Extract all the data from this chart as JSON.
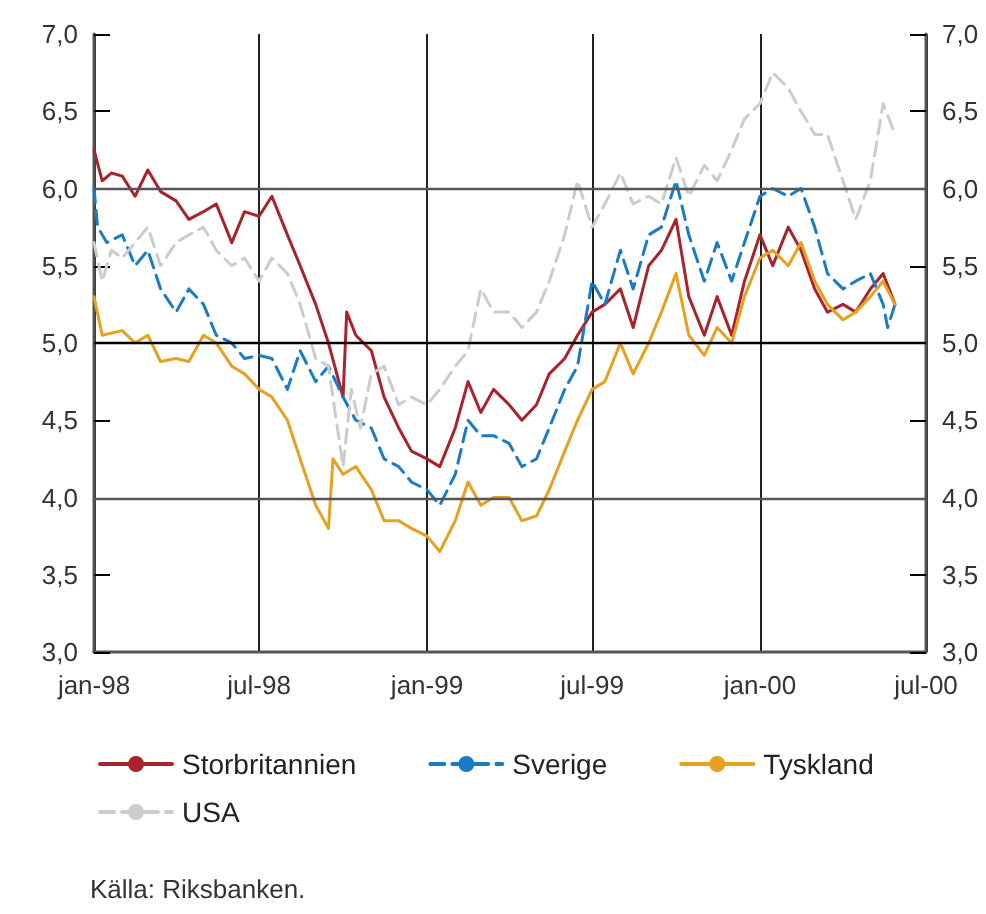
{
  "chart_data": {
    "type": "line",
    "xlim": [
      "1998-01-01",
      "2000-07-01"
    ],
    "xticks": [
      {
        "value": "1998-01-01",
        "label": "jan-98"
      },
      {
        "value": "1998-07-01",
        "label": "jul-98"
      },
      {
        "value": "1999-01-01",
        "label": "jan-99"
      },
      {
        "value": "1999-07-01",
        "label": "jul-99"
      },
      {
        "value": "2000-01-01",
        "label": "jan-00"
      },
      {
        "value": "2000-07-01",
        "label": "jul-00"
      }
    ],
    "ylim": [
      3,
      7
    ],
    "yticks": [
      {
        "value": 3,
        "label": "3,0"
      },
      {
        "value": 3.5,
        "label": "3,5"
      },
      {
        "value": 4,
        "label": "4,0"
      },
      {
        "value": 4.5,
        "label": "4,5"
      },
      {
        "value": 5,
        "label": "5,0"
      },
      {
        "value": 5.5,
        "label": "5,5"
      },
      {
        "value": 6,
        "label": "6,0"
      },
      {
        "value": 6.5,
        "label": "6,5"
      },
      {
        "value": 7,
        "label": "7,0"
      }
    ],
    "y2lim": [
      3,
      7
    ],
    "y2ticks": [
      {
        "value": 3,
        "label": "3,0"
      },
      {
        "value": 3.5,
        "label": "3,5"
      },
      {
        "value": 4,
        "label": "4,0"
      },
      {
        "value": 4.5,
        "label": "4,5"
      },
      {
        "value": 5,
        "label": "5,0"
      },
      {
        "value": 5.5,
        "label": "5,5"
      },
      {
        "value": 6,
        "label": "6,0"
      },
      {
        "value": 6.5,
        "label": "6,5"
      },
      {
        "value": 7,
        "label": "7,0"
      }
    ],
    "grid": "x",
    "ref_lines": [
      {
        "axis": "y",
        "value": 4,
        "color": "#555555"
      },
      {
        "axis": "y",
        "value": 5,
        "color": "#000000"
      },
      {
        "axis": "y",
        "value": 6,
        "color": "#555555"
      }
    ],
    "legend": "bottom",
    "annotations": [
      "Källa: Riksbanken."
    ],
    "series": [
      {
        "name": "Storbritannien",
        "color": "#a8242c",
        "line_style": "solid",
        "x": [
          "1998-01-01",
          "1998-01-10",
          "1998-01-20",
          "1998-02-01",
          "1998-02-15",
          "1998-03-01",
          "1998-03-15",
          "1998-04-01",
          "1998-04-15",
          "1998-05-01",
          "1998-05-15",
          "1998-06-01",
          "1998-06-15",
          "1998-07-01",
          "1998-07-15",
          "1998-08-01",
          "1998-08-15",
          "1998-09-01",
          "1998-09-15",
          "1998-10-01",
          "1998-10-05",
          "1998-10-15",
          "1998-11-01",
          "1998-11-15",
          "1998-12-01",
          "1998-12-15",
          "1999-01-01",
          "1999-01-15",
          "1999-02-01",
          "1999-02-15",
          "1999-03-01",
          "1999-03-15",
          "1999-04-01",
          "1999-04-15",
          "1999-05-01",
          "1999-05-15",
          "1999-06-01",
          "1999-06-15",
          "1999-07-01",
          "1999-07-15",
          "1999-08-01",
          "1999-08-15",
          "1999-09-01",
          "1999-09-15",
          "1999-10-01",
          "1999-10-15",
          "1999-11-01",
          "1999-11-15",
          "1999-12-01",
          "1999-12-15",
          "2000-01-01",
          "2000-01-15",
          "2000-02-01",
          "2000-02-15",
          "2000-03-01",
          "2000-03-15",
          "2000-04-01",
          "2000-04-15",
          "2000-05-01",
          "2000-05-15",
          "2000-05-28"
        ],
        "values": [
          6.25,
          6.05,
          6.1,
          6.08,
          5.95,
          6.12,
          5.98,
          5.92,
          5.8,
          5.85,
          5.9,
          5.65,
          5.85,
          5.82,
          5.95,
          5.7,
          5.5,
          5.25,
          5.0,
          4.65,
          5.2,
          5.05,
          4.95,
          4.65,
          4.45,
          4.3,
          4.25,
          4.2,
          4.45,
          4.75,
          4.55,
          4.7,
          4.6,
          4.5,
          4.6,
          4.8,
          4.9,
          5.05,
          5.2,
          5.25,
          5.35,
          5.1,
          5.5,
          5.6,
          5.8,
          5.3,
          5.05,
          5.3,
          5.05,
          5.4,
          5.7,
          5.5,
          5.75,
          5.6,
          5.35,
          5.2,
          5.25,
          5.2,
          5.35,
          5.45,
          5.25
        ]
      },
      {
        "name": "Sverige",
        "color": "#1a7cc4",
        "line_style": "dashed",
        "x": [
          "1998-01-01",
          "1998-01-05",
          "1998-01-15",
          "1998-02-01",
          "1998-02-15",
          "1998-03-01",
          "1998-03-15",
          "1998-04-01",
          "1998-04-15",
          "1998-05-01",
          "1998-05-15",
          "1998-06-01",
          "1998-06-15",
          "1998-07-01",
          "1998-07-15",
          "1998-08-01",
          "1998-08-15",
          "1998-09-01",
          "1998-09-15",
          "1998-10-01",
          "1998-10-15",
          "1998-11-01",
          "1998-11-15",
          "1998-12-01",
          "1998-12-15",
          "1999-01-01",
          "1999-01-15",
          "1999-02-01",
          "1999-02-15",
          "1999-03-01",
          "1999-03-15",
          "1999-04-01",
          "1999-04-15",
          "1999-05-01",
          "1999-05-15",
          "1999-06-01",
          "1999-06-15",
          "1999-07-01",
          "1999-07-15",
          "1999-08-01",
          "1999-08-15",
          "1999-09-01",
          "1999-09-15",
          "1999-10-01",
          "1999-10-15",
          "1999-11-01",
          "1999-11-15",
          "1999-12-01",
          "1999-12-15",
          "2000-01-01",
          "2000-01-15",
          "2000-02-01",
          "2000-02-15",
          "2000-03-01",
          "2000-03-15",
          "2000-04-01",
          "2000-04-15",
          "2000-05-01",
          "2000-05-15",
          "2000-05-20",
          "2000-05-28"
        ],
        "values": [
          6.0,
          5.75,
          5.65,
          5.7,
          5.5,
          5.6,
          5.35,
          5.2,
          5.35,
          5.25,
          5.05,
          5.0,
          4.9,
          4.92,
          4.9,
          4.7,
          4.95,
          4.75,
          4.85,
          4.65,
          4.5,
          4.45,
          4.25,
          4.2,
          4.1,
          4.05,
          3.95,
          4.15,
          4.5,
          4.4,
          4.4,
          4.35,
          4.2,
          4.25,
          4.45,
          4.7,
          4.85,
          5.4,
          5.25,
          5.6,
          5.35,
          5.7,
          5.75,
          6.05,
          5.7,
          5.4,
          5.65,
          5.4,
          5.65,
          5.95,
          6.0,
          5.95,
          6.0,
          5.75,
          5.45,
          5.35,
          5.4,
          5.45,
          5.25,
          5.1,
          5.25
        ]
      },
      {
        "name": "Tyskland",
        "color": "#e8a020",
        "line_style": "solid",
        "x": [
          "1998-01-01",
          "1998-01-10",
          "1998-02-01",
          "1998-02-15",
          "1998-03-01",
          "1998-03-15",
          "1998-04-01",
          "1998-04-15",
          "1998-05-01",
          "1998-05-15",
          "1998-06-01",
          "1998-06-15",
          "1998-07-01",
          "1998-07-15",
          "1998-08-01",
          "1998-08-15",
          "1998-09-01",
          "1998-09-15",
          "1998-09-20",
          "1998-10-01",
          "1998-10-15",
          "1998-11-01",
          "1998-11-15",
          "1998-12-01",
          "1998-12-15",
          "1999-01-01",
          "1999-01-15",
          "1999-02-01",
          "1999-02-15",
          "1999-03-01",
          "1999-03-15",
          "1999-04-01",
          "1999-04-15",
          "1999-05-01",
          "1999-05-15",
          "1999-06-01",
          "1999-06-15",
          "1999-07-01",
          "1999-07-15",
          "1999-08-01",
          "1999-08-15",
          "1999-09-01",
          "1999-09-15",
          "1999-10-01",
          "1999-10-15",
          "1999-11-01",
          "1999-11-15",
          "1999-12-01",
          "1999-12-15",
          "2000-01-01",
          "2000-01-15",
          "2000-02-01",
          "2000-02-15",
          "2000-03-01",
          "2000-03-15",
          "2000-04-01",
          "2000-04-15",
          "2000-05-01",
          "2000-05-15",
          "2000-05-28"
        ],
        "values": [
          5.3,
          5.05,
          5.08,
          5.0,
          5.05,
          4.88,
          4.9,
          4.88,
          5.05,
          5.0,
          4.85,
          4.8,
          4.7,
          4.65,
          4.5,
          4.25,
          3.95,
          3.8,
          4.25,
          4.15,
          4.2,
          4.05,
          3.85,
          3.85,
          3.8,
          3.75,
          3.65,
          3.85,
          4.1,
          3.95,
          4.0,
          4.0,
          3.85,
          3.88,
          4.05,
          4.3,
          4.5,
          4.7,
          4.75,
          5.0,
          4.8,
          5.0,
          5.2,
          5.45,
          5.05,
          4.92,
          5.1,
          5.0,
          5.3,
          5.55,
          5.6,
          5.5,
          5.65,
          5.4,
          5.25,
          5.15,
          5.2,
          5.3,
          5.4,
          5.25
        ]
      },
      {
        "name": "USA",
        "color": "#cccccc",
        "line_style": "dashed",
        "x": [
          "1998-01-01",
          "1998-01-10",
          "1998-01-20",
          "1998-02-01",
          "1998-02-15",
          "1998-03-01",
          "1998-03-15",
          "1998-04-01",
          "1998-04-15",
          "1998-05-01",
          "1998-05-15",
          "1998-06-01",
          "1998-06-15",
          "1998-07-01",
          "1998-07-15",
          "1998-08-01",
          "1998-08-15",
          "1998-09-01",
          "1998-09-15",
          "1998-10-01",
          "1998-10-10",
          "1998-10-20",
          "1998-11-01",
          "1998-11-15",
          "1998-12-01",
          "1998-12-15",
          "1999-01-01",
          "1999-01-15",
          "1999-02-01",
          "1999-02-15",
          "1999-03-01",
          "1999-03-15",
          "1999-04-01",
          "1999-04-15",
          "1999-05-01",
          "1999-05-15",
          "1999-06-01",
          "1999-06-15",
          "1999-07-01",
          "1999-07-15",
          "1999-08-01",
          "1999-08-15",
          "1999-09-01",
          "1999-09-15",
          "1999-10-01",
          "1999-10-15",
          "1999-11-01",
          "1999-11-15",
          "1999-12-01",
          "1999-12-15",
          "2000-01-01",
          "2000-01-15",
          "2000-02-01",
          "2000-02-15",
          "2000-03-01",
          "2000-03-15",
          "2000-04-01",
          "2000-04-15",
          "2000-05-01",
          "2000-05-15",
          "2000-05-28"
        ],
        "values": [
          5.65,
          5.4,
          5.6,
          5.55,
          5.65,
          5.75,
          5.5,
          5.65,
          5.7,
          5.75,
          5.6,
          5.5,
          5.55,
          5.4,
          5.55,
          5.45,
          5.25,
          4.9,
          4.85,
          4.2,
          4.7,
          4.45,
          4.8,
          4.85,
          4.6,
          4.65,
          4.6,
          4.7,
          4.85,
          4.95,
          5.35,
          5.2,
          5.2,
          5.1,
          5.2,
          5.4,
          5.7,
          6.05,
          5.75,
          5.9,
          6.1,
          5.9,
          5.95,
          5.9,
          6.2,
          5.95,
          6.15,
          6.05,
          6.25,
          6.45,
          6.55,
          6.75,
          6.65,
          6.5,
          6.35,
          6.35,
          6.05,
          5.8,
          6.05,
          6.55,
          6.35
        ]
      }
    ]
  }
}
